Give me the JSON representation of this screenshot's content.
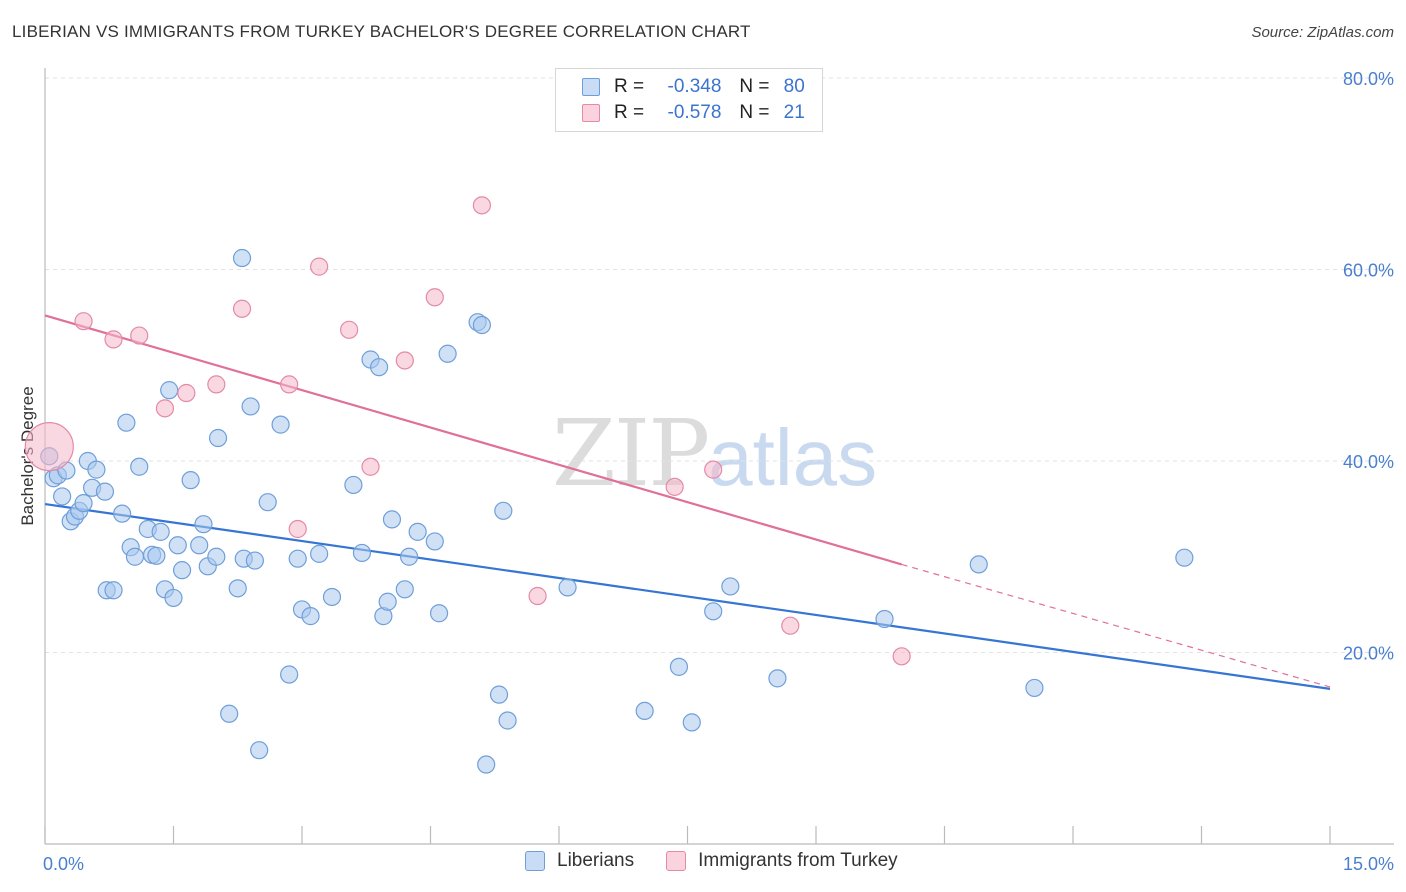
{
  "title": "LIBERIAN VS IMMIGRANTS FROM TURKEY BACHELOR'S DEGREE CORRELATION CHART",
  "source": "Source: ZipAtlas.com",
  "watermark": {
    "part_a": "ZIP",
    "part_b": "atlas"
  },
  "legend_box": {
    "rows": [
      {
        "r_label": "R =",
        "r_value": "-0.348",
        "n_label": "N =",
        "n_value": "80",
        "color": "#a9c8ef"
      },
      {
        "r_label": "R =",
        "r_value": "-0.578",
        "n_label": "N =",
        "n_value": "21",
        "color": "#f6b8cb"
      }
    ]
  },
  "bottom_legend": [
    {
      "label": "Liberians",
      "color": "#a9c8ef"
    },
    {
      "label": "Immigrants from Turkey",
      "color": "#f6b8cb"
    }
  ],
  "colors": {
    "liberians_fill": "#a9c8ef",
    "liberians_stroke": "#6f9fd9",
    "liberians_line": "#3575d3",
    "turkey_fill": "#f6b8cb",
    "turkey_stroke": "#e48aa7",
    "turkey_line": "#e0709a"
  },
  "chart_data": {
    "type": "scatter",
    "title": "LIBERIAN VS IMMIGRANTS FROM TURKEY BACHELOR'S DEGREE CORRELATION CHART",
    "xlabel": "",
    "ylabel": "Bachelor's Degree",
    "xlim": [
      0,
      15
    ],
    "ylim": [
      0,
      80
    ],
    "x_tick_labels": [
      "0.0%",
      "15.0%"
    ],
    "y_tick_labels": [
      "20.0%",
      "40.0%",
      "60.0%",
      "80.0%"
    ],
    "y_ticks": [
      20,
      40,
      60,
      80
    ],
    "grid": true,
    "legend_position": "top-center",
    "series": [
      {
        "name": "Liberians",
        "trend": {
          "x": [
            0,
            15
          ],
          "y": [
            35.5,
            16.2
          ],
          "style": "solid"
        },
        "points": [
          [
            0.05,
            40.5
          ],
          [
            0.1,
            38.2
          ],
          [
            0.15,
            38.5
          ],
          [
            0.2,
            36.3
          ],
          [
            0.25,
            39.0
          ],
          [
            0.3,
            33.7
          ],
          [
            0.35,
            34.2
          ],
          [
            0.4,
            34.8
          ],
          [
            0.45,
            35.6
          ],
          [
            0.5,
            40.0
          ],
          [
            0.55,
            37.2
          ],
          [
            0.6,
            39.1
          ],
          [
            0.7,
            36.8
          ],
          [
            0.72,
            26.5
          ],
          [
            0.8,
            26.5
          ],
          [
            0.9,
            34.5
          ],
          [
            0.95,
            44.0
          ],
          [
            1.0,
            31.0
          ],
          [
            1.05,
            30.0
          ],
          [
            1.1,
            39.4
          ],
          [
            1.2,
            32.9
          ],
          [
            1.25,
            30.2
          ],
          [
            1.3,
            30.1
          ],
          [
            1.35,
            32.6
          ],
          [
            1.4,
            26.6
          ],
          [
            1.45,
            47.4
          ],
          [
            1.5,
            25.7
          ],
          [
            1.55,
            31.2
          ],
          [
            1.6,
            28.6
          ],
          [
            1.7,
            38.0
          ],
          [
            1.8,
            31.2
          ],
          [
            1.85,
            33.4
          ],
          [
            1.9,
            29.0
          ],
          [
            2.0,
            30.0
          ],
          [
            2.02,
            42.4
          ],
          [
            2.15,
            13.6
          ],
          [
            2.25,
            26.7
          ],
          [
            2.3,
            61.2
          ],
          [
            2.32,
            29.8
          ],
          [
            2.4,
            45.7
          ],
          [
            2.45,
            29.6
          ],
          [
            2.5,
            9.8
          ],
          [
            2.6,
            35.7
          ],
          [
            2.75,
            43.8
          ],
          [
            2.85,
            17.7
          ],
          [
            2.95,
            29.8
          ],
          [
            3.0,
            24.5
          ],
          [
            3.1,
            23.8
          ],
          [
            3.2,
            30.3
          ],
          [
            3.35,
            25.8
          ],
          [
            3.6,
            37.5
          ],
          [
            3.7,
            30.4
          ],
          [
            3.8,
            50.6
          ],
          [
            3.9,
            49.8
          ],
          [
            3.95,
            23.8
          ],
          [
            4.0,
            25.3
          ],
          [
            4.05,
            33.9
          ],
          [
            4.2,
            26.6
          ],
          [
            4.25,
            30.0
          ],
          [
            4.35,
            32.6
          ],
          [
            4.55,
            31.6
          ],
          [
            4.6,
            24.1
          ],
          [
            4.7,
            51.2
          ],
          [
            5.05,
            54.5
          ],
          [
            5.1,
            54.2
          ],
          [
            5.15,
            8.3
          ],
          [
            5.3,
            15.6
          ],
          [
            5.35,
            34.8
          ],
          [
            5.4,
            12.9
          ],
          [
            6.1,
            26.8
          ],
          [
            7.0,
            13.9
          ],
          [
            7.4,
            18.5
          ],
          [
            7.55,
            12.7
          ],
          [
            7.8,
            24.3
          ],
          [
            8.0,
            26.9
          ],
          [
            8.55,
            17.3
          ],
          [
            9.8,
            23.5
          ],
          [
            10.9,
            29.2
          ],
          [
            11.55,
            16.3
          ],
          [
            13.3,
            29.9
          ]
        ]
      },
      {
        "name": "Immigrants from Turkey",
        "trend": {
          "x": [
            0,
            10.0
          ],
          "y": [
            55.2,
            29.2
          ],
          "style": "solid",
          "dashed_extension_to": [
            15,
            16.4
          ]
        },
        "points": [
          [
            0.05,
            41.5
          ],
          [
            0.45,
            54.6
          ],
          [
            0.8,
            52.7
          ],
          [
            1.1,
            53.1
          ],
          [
            1.4,
            45.5
          ],
          [
            1.65,
            47.1
          ],
          [
            2.0,
            48.0
          ],
          [
            2.3,
            55.9
          ],
          [
            2.85,
            48.0
          ],
          [
            2.95,
            32.9
          ],
          [
            3.2,
            60.3
          ],
          [
            3.55,
            53.7
          ],
          [
            3.8,
            39.4
          ],
          [
            4.2,
            50.5
          ],
          [
            4.55,
            57.1
          ],
          [
            5.1,
            66.7
          ],
          [
            5.75,
            25.9
          ],
          [
            7.35,
            37.3
          ],
          [
            7.8,
            39.1
          ],
          [
            8.7,
            22.8
          ],
          [
            10.0,
            19.6
          ]
        ]
      }
    ]
  }
}
